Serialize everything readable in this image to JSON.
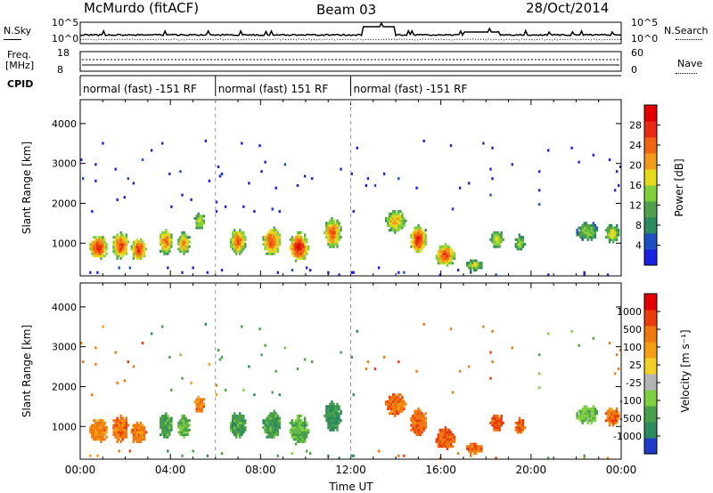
{
  "header": {
    "station": "McMurdo (fitACF)",
    "beam": "Beam 03",
    "date": "28/Oct/2014"
  },
  "top_panels": {
    "nsky_label": "N.Sky",
    "nsky_ticks": [
      "10^5",
      "10^0"
    ],
    "nsearch_label": "N.Search",
    "nsearch_ticks": [
      "10^5",
      "10^0"
    ],
    "freq_label": "Freq.",
    "freq_unit": "[MHz]",
    "freq_ticks": [
      "18",
      "8"
    ],
    "nave_label": "Nave",
    "nave_ticks": [
      "60",
      "0"
    ],
    "cpid_label": "CPID",
    "cpid_segments": [
      {
        "start_hour": 0.0,
        "end_hour": 6.0,
        "label": "normal (fast) -151 RF"
      },
      {
        "start_hour": 6.0,
        "end_hour": 12.0,
        "label": "normal (fast) 151 RF"
      },
      {
        "start_hour": 12.0,
        "end_hour": 24.0,
        "label": "normal (fast) -151 RF"
      }
    ]
  },
  "chart_data": [
    {
      "type": "heatmap",
      "name": "power-panel",
      "xlabel": "",
      "ylabel": "Slant Range [km]",
      "xlim": [
        0,
        24
      ],
      "ylim": [
        180,
        4600
      ],
      "yticks": [
        1000,
        2000,
        3000,
        4000
      ],
      "colorbar": {
        "label": "Power [dB]",
        "ticks": [
          "4",
          "8",
          "12",
          "16",
          "20",
          "24",
          "28"
        ],
        "colors": [
          "#1a20e0",
          "#1f4fc0",
          "#2c8a5f",
          "#52a04c",
          "#7fd03a",
          "#e6d81e",
          "#f29a1b",
          "#f06414",
          "#e82a10",
          "#e20000"
        ]
      },
      "blobs": [
        {
          "t": 0.8,
          "r": 900,
          "dt": 0.45,
          "dr": 320,
          "level": 0.92
        },
        {
          "t": 1.8,
          "r": 950,
          "dt": 0.4,
          "dr": 360,
          "level": 0.85
        },
        {
          "t": 2.6,
          "r": 850,
          "dt": 0.35,
          "dr": 320,
          "level": 0.9
        },
        {
          "t": 3.8,
          "r": 1050,
          "dt": 0.35,
          "dr": 350,
          "level": 0.75
        },
        {
          "t": 4.6,
          "r": 1000,
          "dt": 0.3,
          "dr": 300,
          "level": 0.7
        },
        {
          "t": 5.3,
          "r": 1550,
          "dt": 0.25,
          "dr": 250,
          "level": 0.55
        },
        {
          "t": 7.0,
          "r": 1050,
          "dt": 0.4,
          "dr": 350,
          "level": 0.8
        },
        {
          "t": 8.5,
          "r": 1050,
          "dt": 0.45,
          "dr": 380,
          "level": 0.82
        },
        {
          "t": 9.7,
          "r": 900,
          "dt": 0.45,
          "dr": 400,
          "level": 0.95
        },
        {
          "t": 11.2,
          "r": 1250,
          "dt": 0.4,
          "dr": 400,
          "level": 0.8
        },
        {
          "t": 14.0,
          "r": 1550,
          "dt": 0.5,
          "dr": 300,
          "level": 0.65
        },
        {
          "t": 15.0,
          "r": 1100,
          "dt": 0.4,
          "dr": 380,
          "level": 0.9
        },
        {
          "t": 16.2,
          "r": 700,
          "dt": 0.5,
          "dr": 300,
          "level": 0.85
        },
        {
          "t": 17.5,
          "r": 450,
          "dt": 0.4,
          "dr": 160,
          "level": 0.5
        },
        {
          "t": 18.5,
          "r": 1100,
          "dt": 0.3,
          "dr": 250,
          "level": 0.55
        },
        {
          "t": 19.5,
          "r": 1000,
          "dt": 0.25,
          "dr": 220,
          "level": 0.5
        },
        {
          "t": 22.5,
          "r": 1300,
          "dt": 0.5,
          "dr": 250,
          "level": 0.45
        },
        {
          "t": 23.6,
          "r": 1250,
          "dt": 0.35,
          "dr": 250,
          "level": 0.55
        }
      ]
    },
    {
      "type": "heatmap",
      "name": "velocity-panel",
      "xlabel": "Time UT",
      "ylabel": "Slant Range [km]",
      "xlim": [
        0,
        24
      ],
      "ylim": [
        180,
        4600
      ],
      "xticks": [
        "00:00",
        "04:00",
        "08:00",
        "12:00",
        "16:00",
        "20:00",
        "00:00"
      ],
      "yticks": [
        1000,
        2000,
        3000,
        4000
      ],
      "colorbar": {
        "label": "Velocity [m s⁻¹]",
        "ticks": [
          "1000",
          "500",
          "100",
          "25",
          "-25",
          "-100",
          "-500",
          "-1000"
        ],
        "colors": [
          "#1e3cc8",
          "#2c8a5f",
          "#4aa04a",
          "#7fd040",
          "#b4b4b4",
          "#f2d028",
          "#f5a014",
          "#f07810",
          "#e83c0a",
          "#e40000"
        ]
      },
      "blobs": [
        {
          "t": 0.8,
          "r": 900,
          "dt": 0.45,
          "dr": 320,
          "level": 0.75
        },
        {
          "t": 1.8,
          "r": 950,
          "dt": 0.4,
          "dr": 360,
          "level": 0.78
        },
        {
          "t": 2.6,
          "r": 850,
          "dt": 0.35,
          "dr": 320,
          "level": 0.78
        },
        {
          "t": 3.8,
          "r": 1050,
          "dt": 0.35,
          "dr": 350,
          "level": 0.2
        },
        {
          "t": 4.6,
          "r": 1000,
          "dt": 0.3,
          "dr": 300,
          "level": 0.25
        },
        {
          "t": 5.3,
          "r": 1550,
          "dt": 0.25,
          "dr": 250,
          "level": 0.75
        },
        {
          "t": 7.0,
          "r": 1050,
          "dt": 0.4,
          "dr": 350,
          "level": 0.22
        },
        {
          "t": 8.5,
          "r": 1050,
          "dt": 0.45,
          "dr": 380,
          "level": 0.2
        },
        {
          "t": 9.7,
          "r": 900,
          "dt": 0.45,
          "dr": 400,
          "level": 0.25
        },
        {
          "t": 11.2,
          "r": 1250,
          "dt": 0.4,
          "dr": 400,
          "level": 0.15
        },
        {
          "t": 14.0,
          "r": 1550,
          "dt": 0.5,
          "dr": 300,
          "level": 0.78
        },
        {
          "t": 15.0,
          "r": 1100,
          "dt": 0.4,
          "dr": 380,
          "level": 0.8
        },
        {
          "t": 16.2,
          "r": 700,
          "dt": 0.5,
          "dr": 300,
          "level": 0.82
        },
        {
          "t": 17.5,
          "r": 450,
          "dt": 0.4,
          "dr": 160,
          "level": 0.78
        },
        {
          "t": 18.5,
          "r": 1100,
          "dt": 0.3,
          "dr": 250,
          "level": 0.85
        },
        {
          "t": 19.5,
          "r": 1000,
          "dt": 0.25,
          "dr": 220,
          "level": 0.82
        },
        {
          "t": 22.5,
          "r": 1300,
          "dt": 0.5,
          "dr": 250,
          "level": 0.3
        },
        {
          "t": 23.6,
          "r": 1250,
          "dt": 0.35,
          "dr": 250,
          "level": 0.78
        }
      ]
    }
  ]
}
